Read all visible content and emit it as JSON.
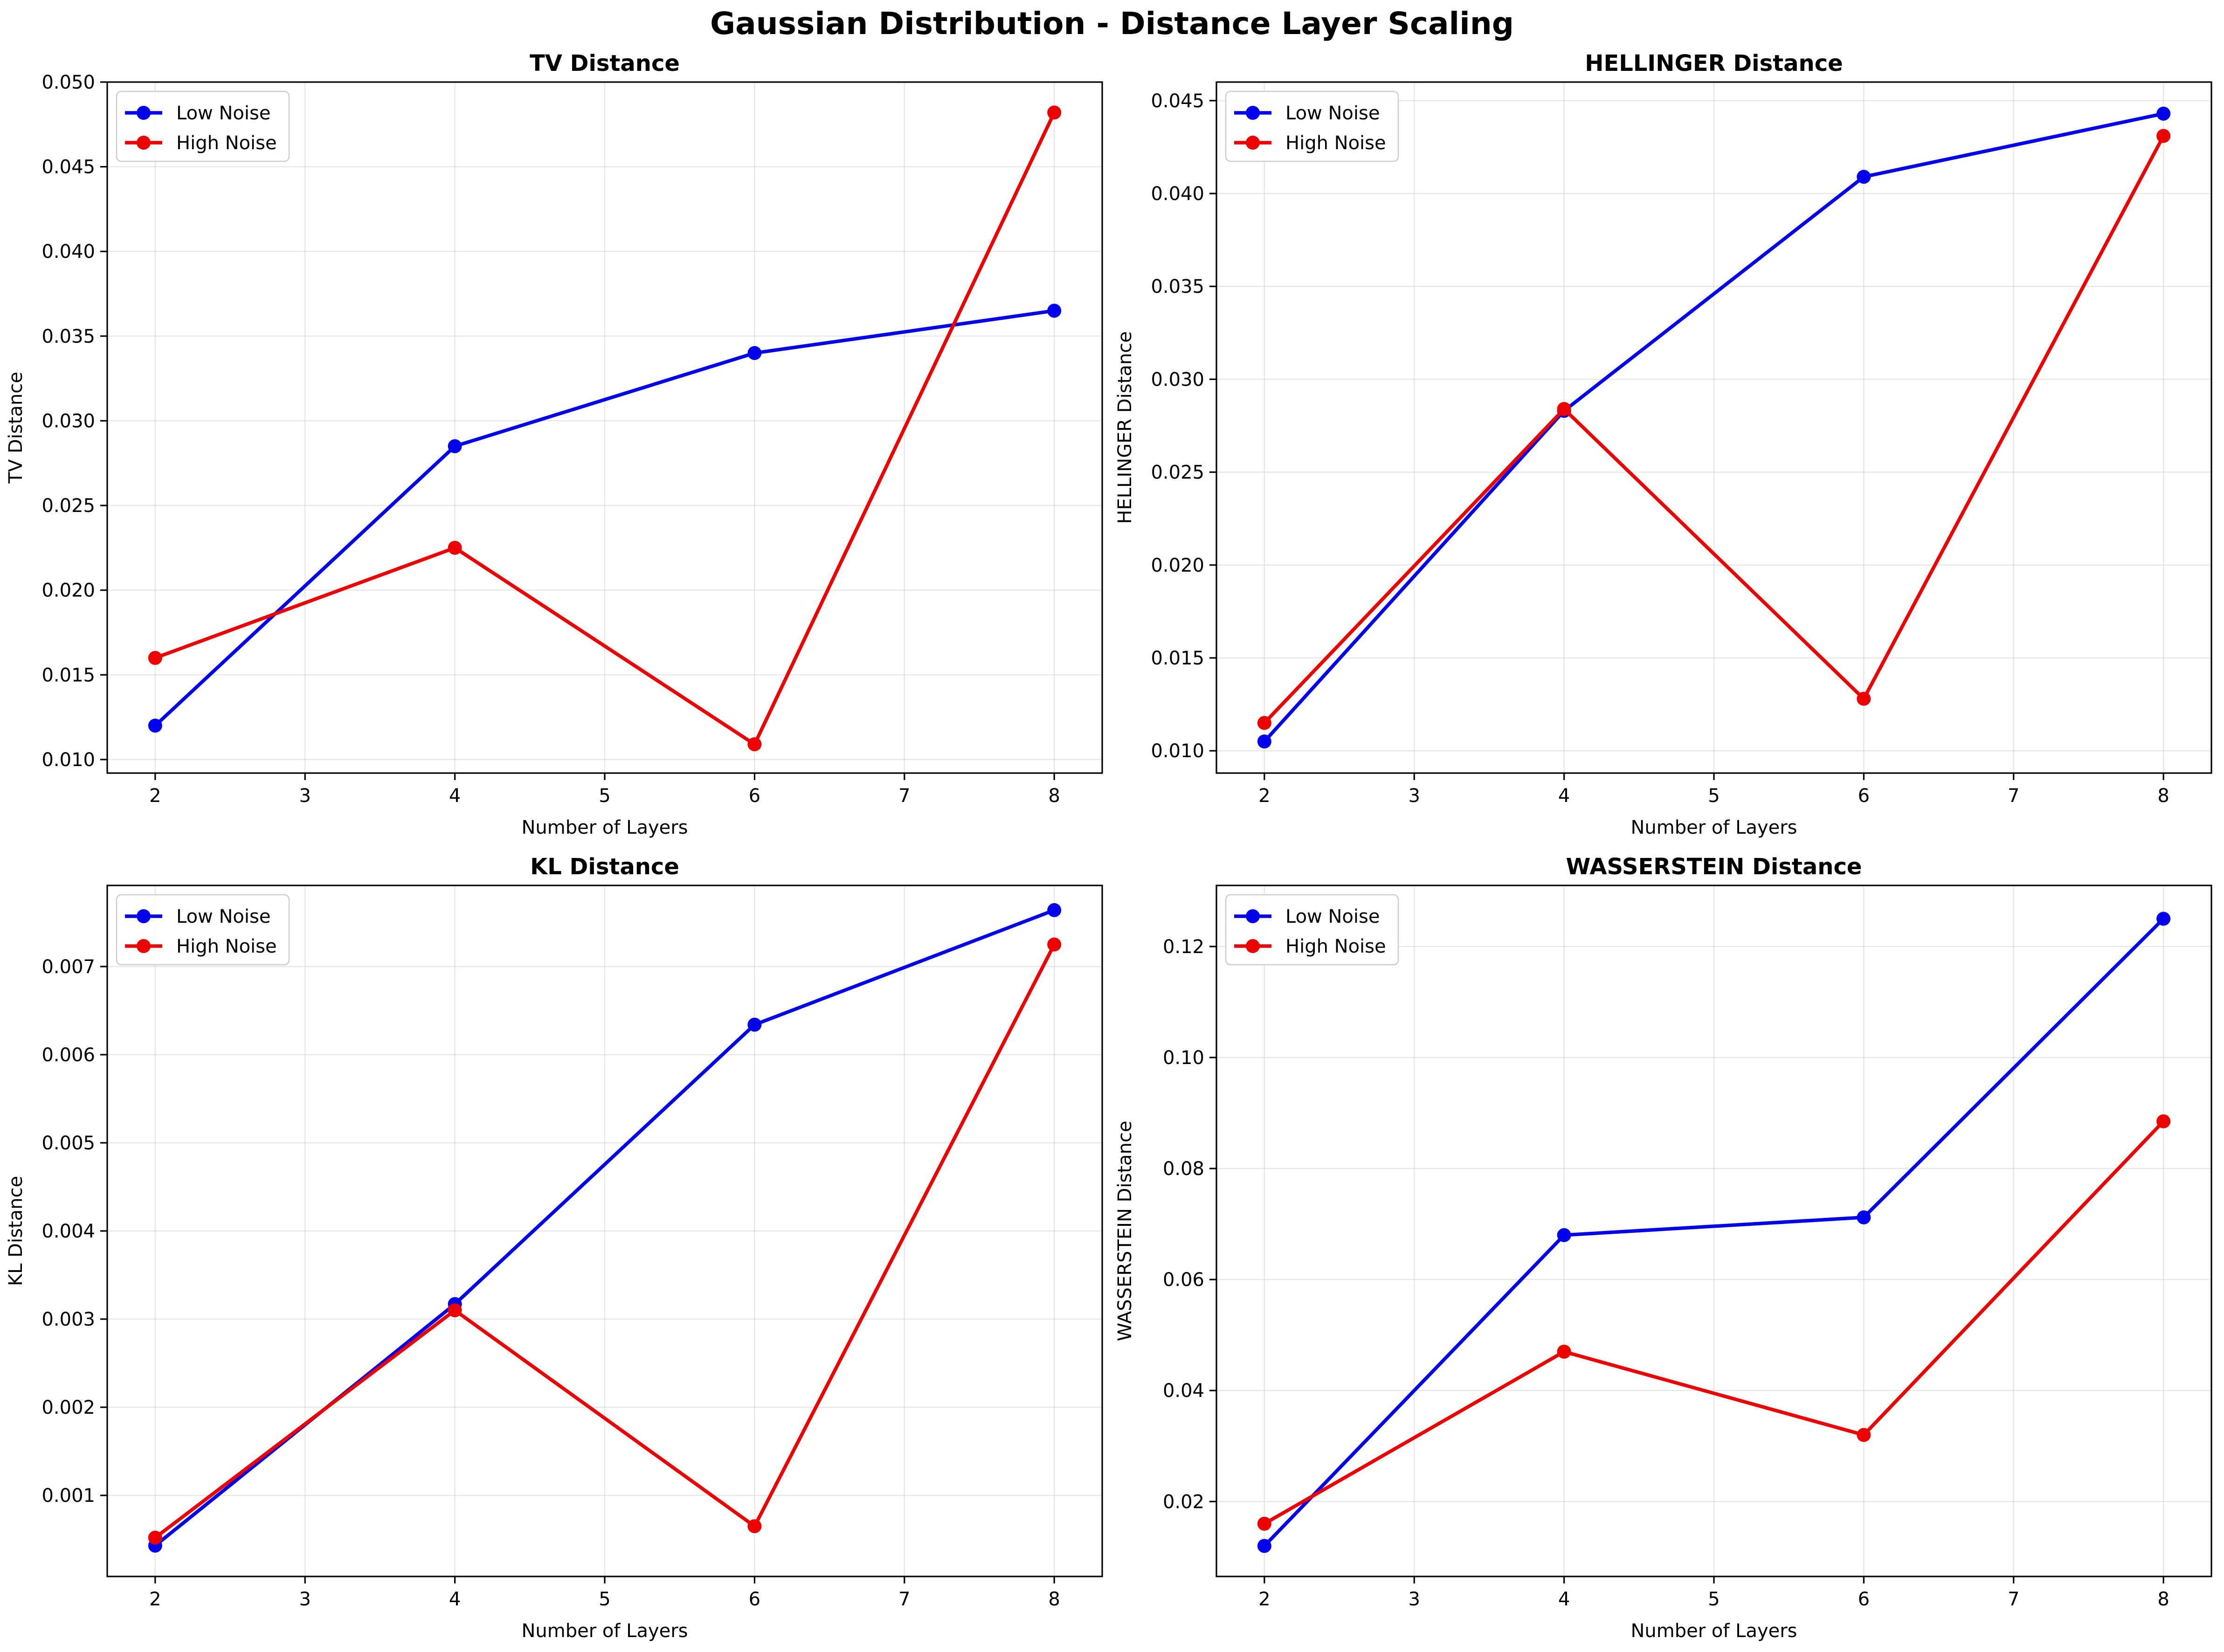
{
  "figure": {
    "title": "Gaussian Distribution - Distance Layer Scaling"
  },
  "chart_data": [
    {
      "type": "line",
      "title": "TV Distance",
      "xlabel": "Number of Layers",
      "ylabel": "TV Distance",
      "x": [
        2,
        4,
        6,
        8
      ],
      "xlim": [
        1.68,
        8.32
      ],
      "ylim": [
        0.0092,
        0.05
      ],
      "xticks": [
        2,
        3,
        4,
        5,
        6,
        7,
        8
      ],
      "yticks": [
        0.01,
        0.015,
        0.02,
        0.025,
        0.03,
        0.035,
        0.04,
        0.045,
        0.05
      ],
      "ytick_labels": [
        "0.010",
        "0.015",
        "0.020",
        "0.025",
        "0.030",
        "0.035",
        "0.040",
        "0.045",
        "0.050"
      ],
      "grid": true,
      "legend": "upper-left",
      "series": [
        {
          "name": "Low Noise",
          "color": "#0000ee",
          "values": [
            0.012,
            0.0285,
            0.034,
            0.0365
          ]
        },
        {
          "name": "High Noise",
          "color": "#ee0000",
          "values": [
            0.016,
            0.0225,
            0.0109,
            0.0482
          ]
        }
      ]
    },
    {
      "type": "line",
      "title": "HELLINGER Distance",
      "xlabel": "Number of Layers",
      "ylabel": "HELLINGER Distance",
      "x": [
        2,
        4,
        6,
        8
      ],
      "xlim": [
        1.68,
        8.32
      ],
      "ylim": [
        0.0088,
        0.046
      ],
      "xticks": [
        2,
        3,
        4,
        5,
        6,
        7,
        8
      ],
      "yticks": [
        0.01,
        0.015,
        0.02,
        0.025,
        0.03,
        0.035,
        0.04,
        0.045
      ],
      "ytick_labels": [
        "0.010",
        "0.015",
        "0.020",
        "0.025",
        "0.030",
        "0.035",
        "0.040",
        "0.045"
      ],
      "grid": true,
      "legend": "upper-left",
      "series": [
        {
          "name": "Low Noise",
          "color": "#0000ee",
          "values": [
            0.0105,
            0.0283,
            0.0409,
            0.0443
          ]
        },
        {
          "name": "High Noise",
          "color": "#ee0000",
          "values": [
            0.0115,
            0.0284,
            0.0128,
            0.0431
          ]
        }
      ]
    },
    {
      "type": "line",
      "title": "KL Distance",
      "xlabel": "Number of Layers",
      "ylabel": "KL Distance",
      "x": [
        2,
        4,
        6,
        8
      ],
      "xlim": [
        1.68,
        8.32
      ],
      "ylim": [
        8e-05,
        0.00792
      ],
      "xticks": [
        2,
        3,
        4,
        5,
        6,
        7,
        8
      ],
      "yticks": [
        0.001,
        0.002,
        0.003,
        0.004,
        0.005,
        0.006,
        0.007
      ],
      "ytick_labels": [
        "0.001",
        "0.002",
        "0.003",
        "0.004",
        "0.005",
        "0.006",
        "0.007"
      ],
      "grid": true,
      "legend": "upper-left",
      "series": [
        {
          "name": "Low Noise",
          "color": "#0000ee",
          "values": [
            0.00043,
            0.00317,
            0.00634,
            0.00764
          ]
        },
        {
          "name": "High Noise",
          "color": "#ee0000",
          "values": [
            0.00052,
            0.0031,
            0.00065,
            0.00725
          ]
        }
      ]
    },
    {
      "type": "line",
      "title": "WASSERSTEIN Distance",
      "xlabel": "Number of Layers",
      "ylabel": "WASSERSTEIN Distance",
      "x": [
        2,
        4,
        6,
        8
      ],
      "xlim": [
        1.68,
        8.32
      ],
      "ylim": [
        0.0065,
        0.131
      ],
      "xticks": [
        2,
        3,
        4,
        5,
        6,
        7,
        8
      ],
      "yticks": [
        0.02,
        0.04,
        0.06,
        0.08,
        0.1,
        0.12
      ],
      "ytick_labels": [
        "0.02",
        "0.04",
        "0.06",
        "0.08",
        "0.10",
        "0.12"
      ],
      "grid": true,
      "legend": "upper-left",
      "series": [
        {
          "name": "Low Noise",
          "color": "#0000ee",
          "values": [
            0.012,
            0.068,
            0.0712,
            0.125
          ]
        },
        {
          "name": "High Noise",
          "color": "#ee0000",
          "values": [
            0.016,
            0.047,
            0.032,
            0.0885
          ]
        }
      ]
    }
  ]
}
